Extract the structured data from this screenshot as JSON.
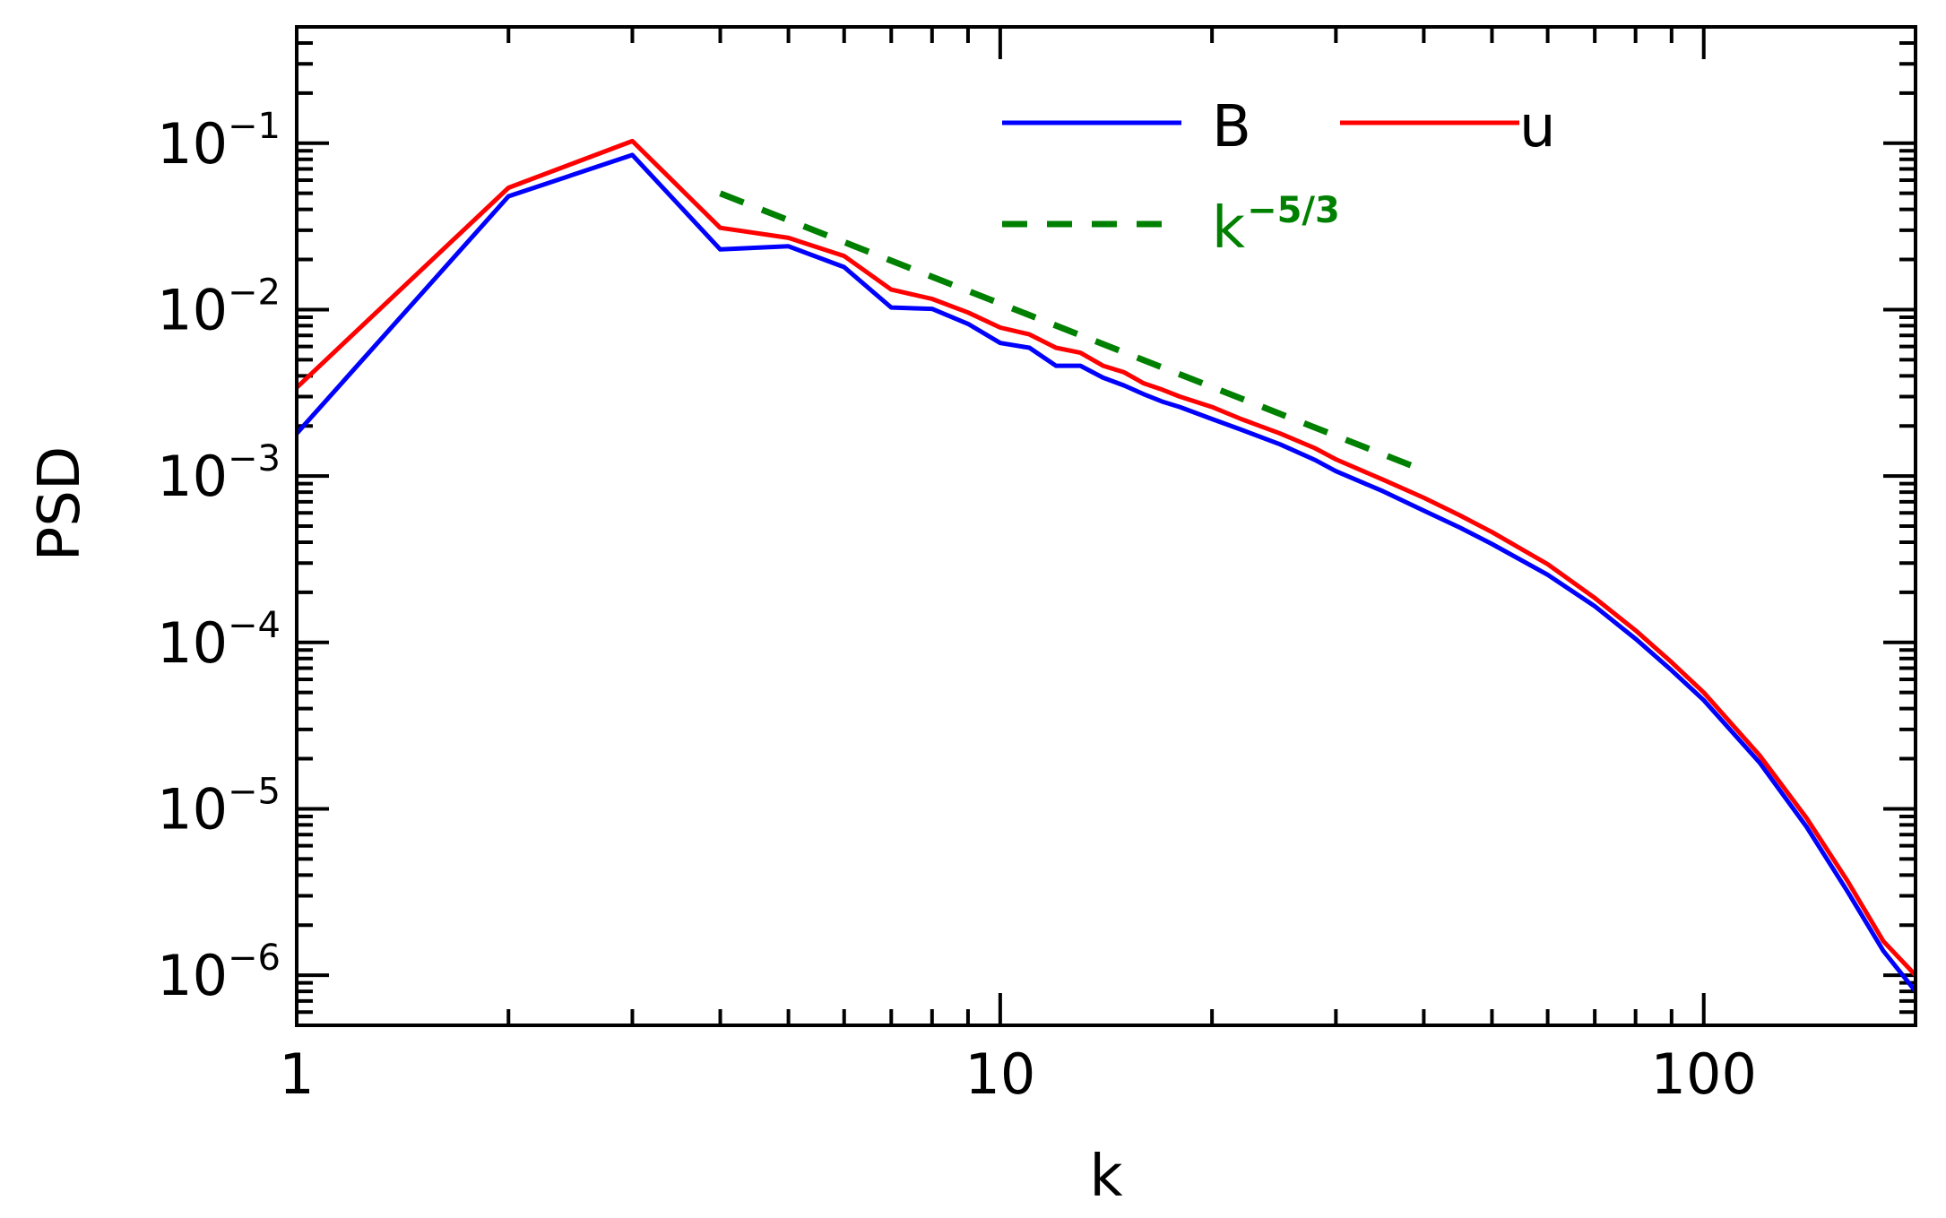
{
  "chart_data": {
    "type": "line",
    "xlabel": "k",
    "ylabel": "PSD",
    "xscale": "log",
    "yscale": "log",
    "xlim": [
      1,
      200
    ],
    "ylim": [
      5e-07,
      0.5
    ],
    "grid": false,
    "legend_placement": "top-center",
    "x_ticks": [
      {
        "value": 1,
        "label": "1"
      },
      {
        "value": 10,
        "label": "10"
      },
      {
        "value": 100,
        "label": "100"
      }
    ],
    "y_ticks": [
      {
        "value": 1e-06,
        "base": "10",
        "exp": "−6"
      },
      {
        "value": 1e-05,
        "base": "10",
        "exp": "−5"
      },
      {
        "value": 0.0001,
        "base": "10",
        "exp": "−4"
      },
      {
        "value": 0.001,
        "base": "10",
        "exp": "−3"
      },
      {
        "value": 0.01,
        "base": "10",
        "exp": "−2"
      },
      {
        "value": 0.1,
        "base": "10",
        "exp": "−1"
      }
    ],
    "series": [
      {
        "name": "B",
        "color": "#0000ff",
        "style": "solid",
        "x": [
          1,
          2,
          3,
          4,
          5,
          6,
          7,
          8,
          9,
          10,
          11,
          12,
          13,
          14,
          15,
          16,
          17,
          18,
          20,
          22,
          25,
          28,
          30,
          35,
          40,
          45,
          50,
          60,
          70,
          80,
          90,
          100,
          120,
          140,
          160,
          180,
          200
        ],
        "y": [
          0.0018,
          0.048,
          0.085,
          0.023,
          0.024,
          0.018,
          0.0103,
          0.0101,
          0.0082,
          0.0063,
          0.0059,
          0.0046,
          0.0046,
          0.0039,
          0.0035,
          0.0031,
          0.0028,
          0.0026,
          0.0022,
          0.0019,
          0.00155,
          0.00125,
          0.00107,
          0.00081,
          0.00062,
          0.00049,
          0.00039,
          0.000255,
          0.000165,
          0.000105,
          6.8e-05,
          4.5e-05,
          1.9e-05,
          7.8e-06,
          3.2e-06,
          1.4e-06,
          8e-07
        ]
      },
      {
        "name": "u",
        "color": "#ff0000",
        "style": "solid",
        "x": [
          1,
          2,
          3,
          4,
          5,
          6,
          7,
          8,
          9,
          10,
          11,
          12,
          13,
          14,
          15,
          16,
          17,
          18,
          20,
          22,
          25,
          28,
          30,
          35,
          40,
          45,
          50,
          60,
          70,
          80,
          90,
          100,
          120,
          140,
          160,
          180,
          200
        ],
        "y": [
          0.0034,
          0.054,
          0.103,
          0.031,
          0.027,
          0.021,
          0.0132,
          0.0116,
          0.0096,
          0.0078,
          0.0071,
          0.0059,
          0.0055,
          0.0046,
          0.0042,
          0.0036,
          0.0033,
          0.003,
          0.0026,
          0.0022,
          0.0018,
          0.00147,
          0.00126,
          0.00095,
          0.00074,
          0.00058,
          0.00046,
          0.000295,
          0.000185,
          0.000118,
          7.6e-05,
          5e-05,
          2.1e-05,
          8.8e-06,
          3.7e-06,
          1.6e-06,
          1e-06
        ]
      },
      {
        "name": "k",
        "name_exp": "−5/3",
        "color": "#008000",
        "style": "dashed",
        "x": [
          4,
          40
        ],
        "y": [
          0.05,
          0.00108
        ]
      }
    ]
  }
}
